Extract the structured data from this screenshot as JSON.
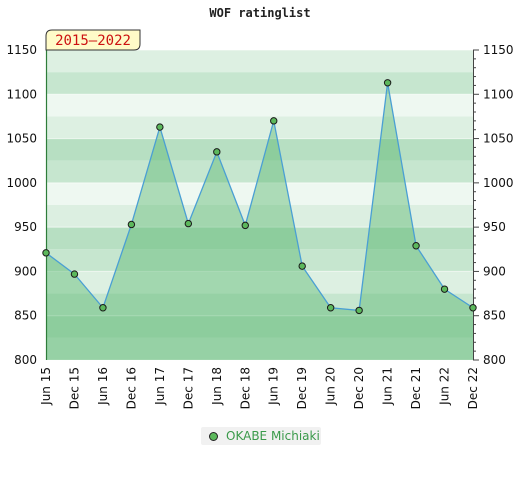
{
  "chart_data": {
    "type": "area",
    "title": "WOF ratinglist",
    "period_badge": "2015–2022",
    "categories": [
      "Jun 15",
      "Dec 15",
      "Jun 16",
      "Dec 16",
      "Jun 17",
      "Dec 17",
      "Jun 18",
      "Dec 18",
      "Jun 19",
      "Dec 19",
      "Jun 20",
      "Dec 20",
      "Jun 21",
      "Dec 21",
      "Jun 22",
      "Dec 22"
    ],
    "series": [
      {
        "name": "OKABE Michiaki",
        "values": [
          921,
          897,
          859,
          953,
          1063,
          954,
          1035,
          952,
          1070,
          906,
          859,
          856,
          1113,
          929,
          880,
          859
        ]
      }
    ],
    "ylim": [
      800,
      1150
    ],
    "yticks": [
      800,
      850,
      900,
      950,
      1000,
      1050,
      1100,
      1150
    ],
    "grid": true,
    "legend_position": "bottom-center",
    "colors": {
      "line": "#4a9fd4",
      "area": "#5cb870",
      "marker": "#5cb85c",
      "badge_bg": "#fffbc8",
      "badge_text": "#cc1111",
      "legend_text": "#3a9a4a"
    }
  }
}
